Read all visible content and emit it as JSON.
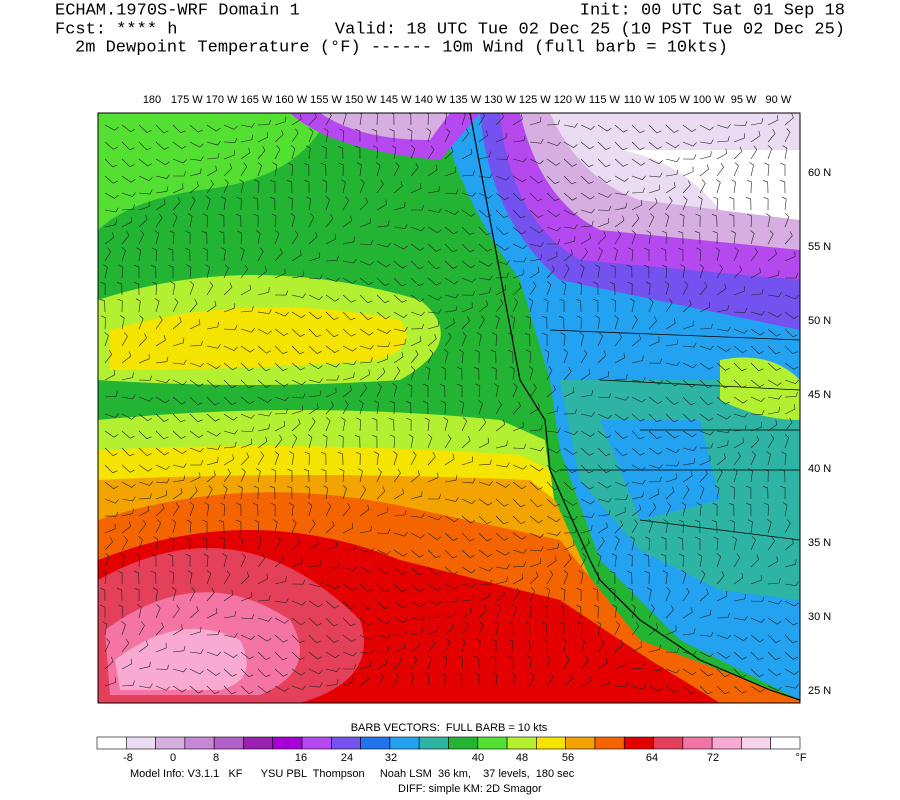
{
  "header": {
    "left": [
      "ECHAM.1970S-WRF Domain 1",
      "Fcst: **** h"
    ],
    "init": "Init: 00 UTC Sat 01 Sep 18",
    "valid": "Valid: 18 UTC Tue 02 Dec 25 (10 PST Tue 02 Dec 25)",
    "field": "2m Dewpoint Temperature (°F) ------ 10m Wind (full barb = 10kts)"
  },
  "map": {
    "longitude_labels": [
      "180",
      "175 W",
      "170 W",
      "165 W",
      "160 W",
      "155 W",
      "150 W",
      "145 W",
      "140 W",
      "135 W",
      "130 W",
      "125 W",
      "120 W",
      "115 W",
      "110 W",
      "105 W",
      "100 W",
      "95 W",
      "90 W"
    ],
    "latitude_labels": [
      "60 N",
      "55 N",
      "50 N",
      "45 N",
      "40 N",
      "35 N",
      "30 N",
      "25 N"
    ]
  },
  "colorbar": {
    "title": "BARB VECTORS:  FULL BARB = 10 kts",
    "labels": [
      "-8",
      "0",
      "8",
      "16",
      "24",
      "32",
      "40",
      "48",
      "56",
      "64",
      "72"
    ],
    "unit": "°F",
    "colors": [
      "#ffffff",
      "#eadcf2",
      "#d6aee2",
      "#c688d6",
      "#b060c6",
      "#9a22b0",
      "#a800d8",
      "#b648f0",
      "#7452f0",
      "#2272f0",
      "#22a2f0",
      "#2eb4a4",
      "#22b432",
      "#54e032",
      "#b4f032",
      "#f4e400",
      "#f4a400",
      "#f46400",
      "#e40000",
      "#e4405a",
      "#f474a4",
      "#f8aad2",
      "#f8d4ea",
      "#ffffff"
    ]
  },
  "footer": [
    "Model Info: V3.1.1   KF      YSU PBL  Thompson     Noah LSM  36 km,    37 levels,  180 sec",
    "DIFF: simple KM: 2D Smagor"
  ]
}
